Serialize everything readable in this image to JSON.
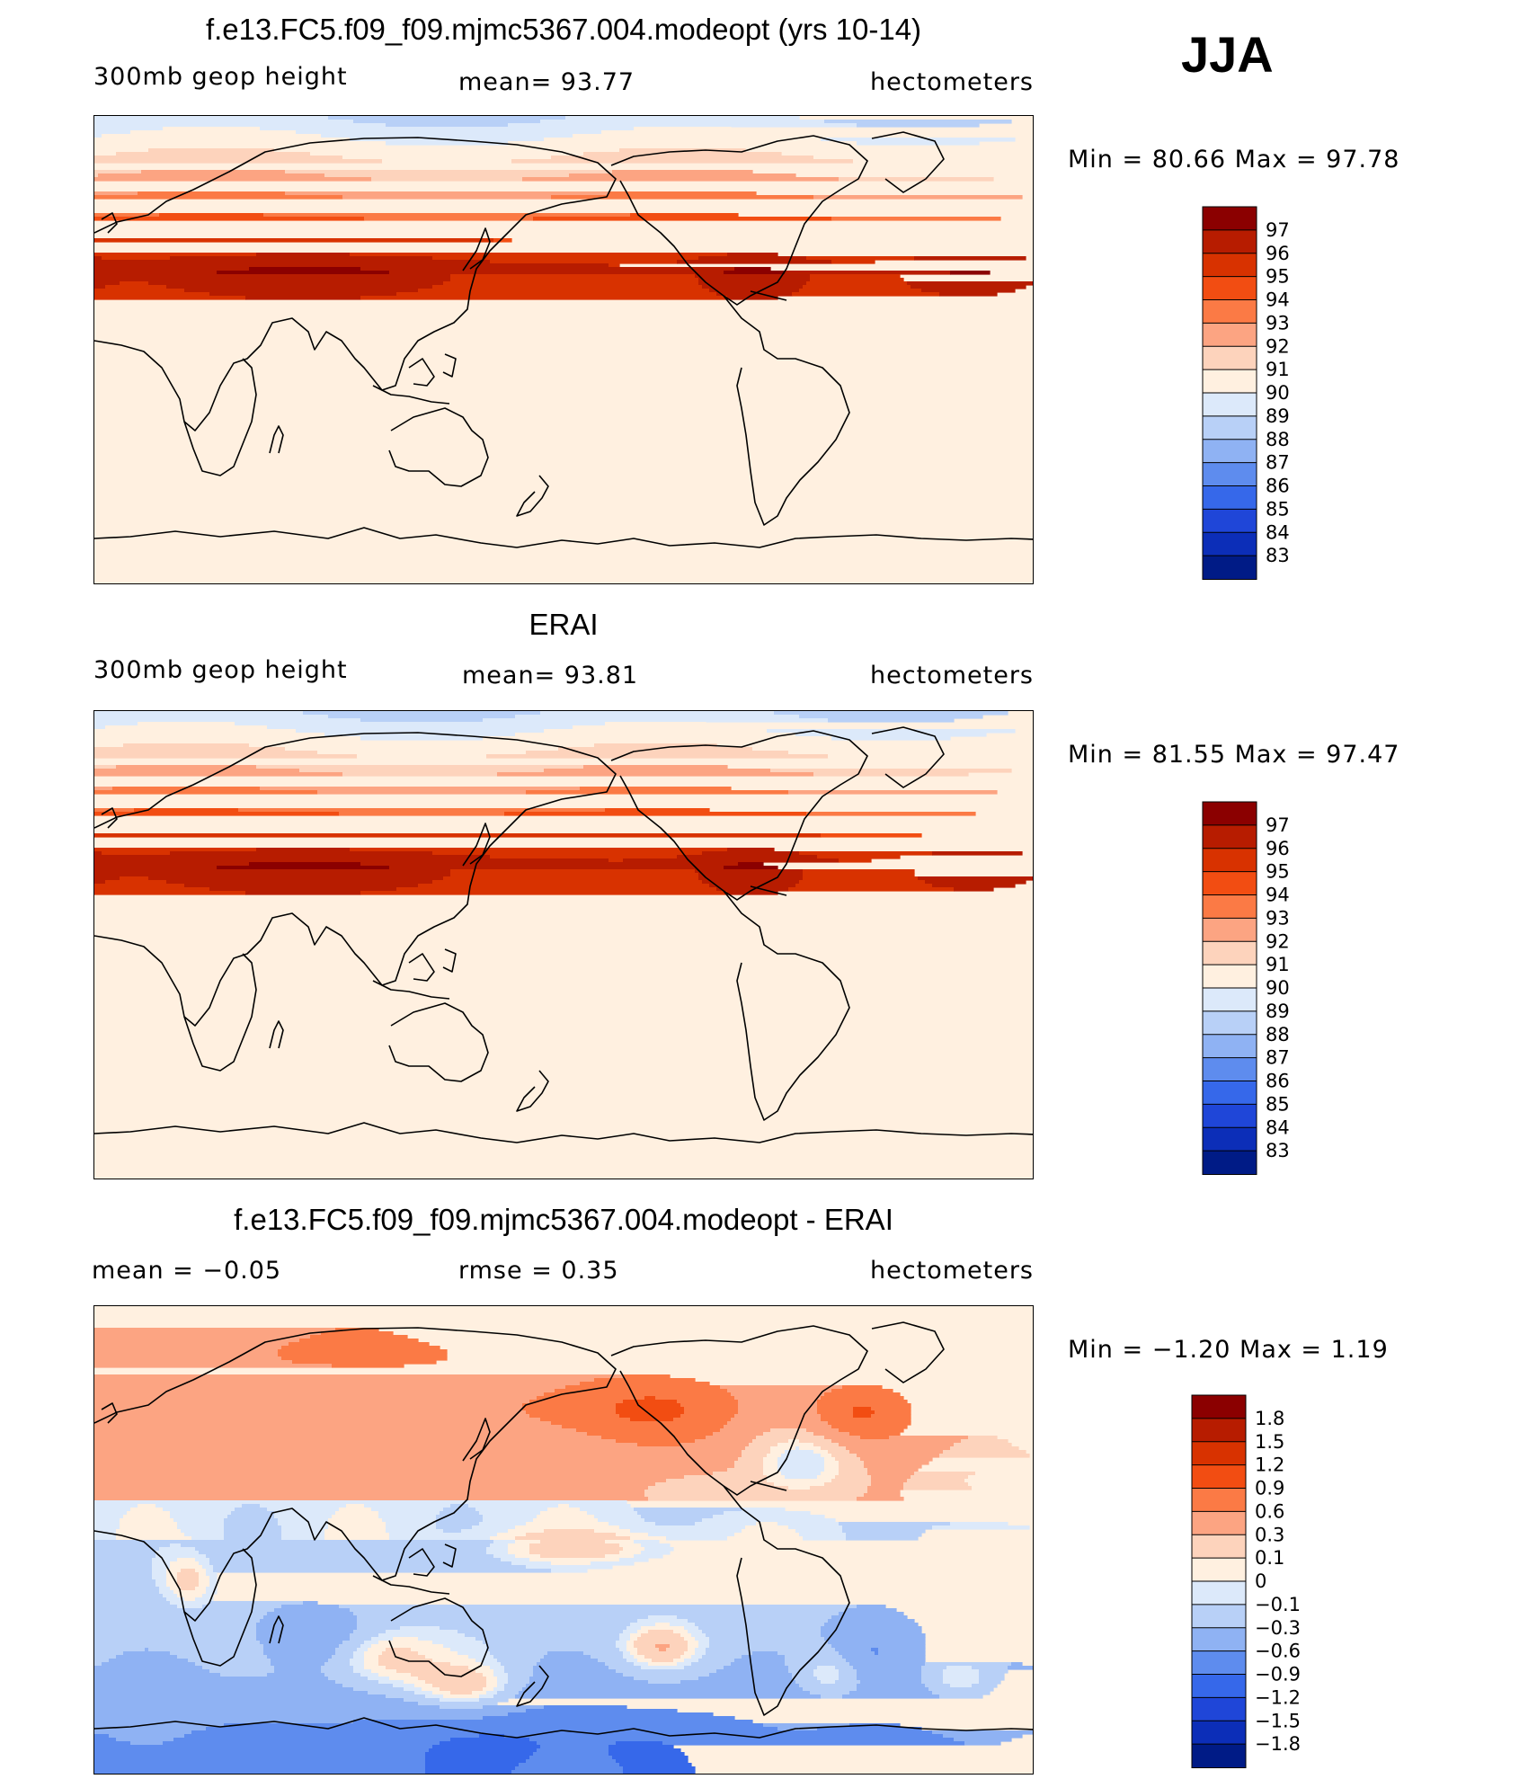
{
  "season": "JJA",
  "panels": [
    {
      "id": "model",
      "title": "f.e13.FC5.f09_f09.mjmc5367.004.modeopt (yrs 10-14)",
      "left_label": "300mb geop height",
      "center_label": "mean=  93.77",
      "units": "hectometers",
      "min_max": "Min =   80.66  Max =   97.78",
      "colorbar_labels": [
        "97",
        "96",
        "95",
        "94",
        "93",
        "92",
        "91",
        "90",
        "89",
        "88",
        "87",
        "86",
        "85",
        "84",
        "83"
      ],
      "colorbar_colors": [
        "#8b0000",
        "#b71c00",
        "#d83200",
        "#f24d12",
        "#fb7a45",
        "#fca482",
        "#fdd3bc",
        "#fff0e0",
        "#dce9fa",
        "#b8d0f7",
        "#8fb2f3",
        "#5e8cee",
        "#3668ea",
        "#1f46d8",
        "#0c2eb8",
        "#001b86"
      ],
      "field": "model"
    },
    {
      "id": "obs",
      "title": "ERAI",
      "left_label": "300mb geop height",
      "center_label": "mean=  93.81",
      "units": "hectometers",
      "min_max": "Min =   81.55  Max =   97.47",
      "colorbar_labels": [
        "97",
        "96",
        "95",
        "94",
        "93",
        "92",
        "91",
        "90",
        "89",
        "88",
        "87",
        "86",
        "85",
        "84",
        "83"
      ],
      "colorbar_colors": [
        "#8b0000",
        "#b71c00",
        "#d83200",
        "#f24d12",
        "#fb7a45",
        "#fca482",
        "#fdd3bc",
        "#fff0e0",
        "#dce9fa",
        "#b8d0f7",
        "#8fb2f3",
        "#5e8cee",
        "#3668ea",
        "#1f46d8",
        "#0c2eb8",
        "#001b86"
      ],
      "field": "obs"
    },
    {
      "id": "diff",
      "title": "f.e13.FC5.f09_f09.mjmc5367.004.modeopt - ERAI",
      "left_label": "mean =   −0.05",
      "center_label": "rmse =    0.35",
      "units": "hectometers",
      "min_max": "Min =   −1.20  Max =     1.19",
      "colorbar_labels": [
        "1.8",
        "1.5",
        "1.2",
        "0.9",
        "0.6",
        "0.3",
        "0.1",
        "0",
        "−0.1",
        "−0.3",
        "−0.6",
        "−0.9",
        "−1.2",
        "−1.5",
        "−1.8"
      ],
      "colorbar_colors": [
        "#8b0000",
        "#b71c00",
        "#d83200",
        "#f24d12",
        "#fb7a45",
        "#fca482",
        "#fdd3bc",
        "#fff0e0",
        "#dce9fa",
        "#b8d0f7",
        "#8fb2f3",
        "#5e8cee",
        "#3668ea",
        "#1f46d8",
        "#0c2eb8",
        "#001b86"
      ],
      "field": "diff"
    }
  ]
}
